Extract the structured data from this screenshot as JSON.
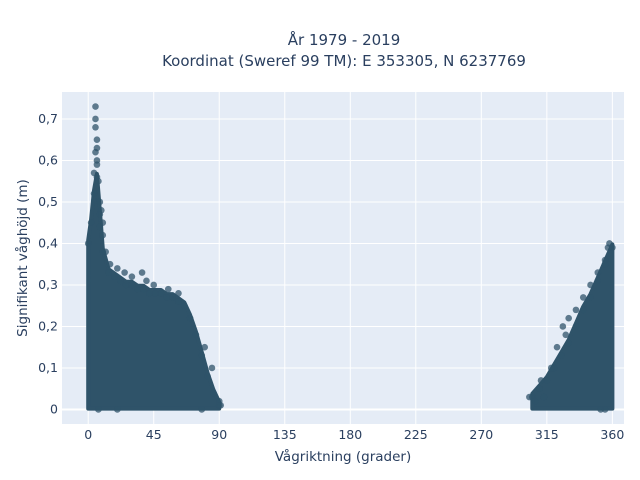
{
  "chart_data": {
    "type": "scatter",
    "title_line1": "År 1979 - 2019",
    "title_line2": "Koordinat (Sweref 99 TM): E 353305, N 6237769",
    "xlabel": "Vågriktning (grader)",
    "ylabel": "Signifikant våghöjd (m)",
    "xlim": [
      -18,
      368
    ],
    "ylim": [
      -0.035,
      0.765
    ],
    "x_ticks": [
      0,
      45,
      90,
      135,
      180,
      225,
      270,
      315,
      360
    ],
    "x_tick_labels": [
      "0",
      "45",
      "90",
      "135",
      "180",
      "225",
      "270",
      "315",
      "360"
    ],
    "y_ticks": [
      0,
      0.1,
      0.2,
      0.3,
      0.4,
      0.5,
      0.6,
      0.7
    ],
    "y_tick_labels": [
      "0",
      "0,1",
      "0,2",
      "0,3",
      "0,4",
      "0,5",
      "0,6",
      "0,7"
    ],
    "grid": true,
    "marker_color": "#2f5369",
    "plot_bg": "#e5ecf6",
    "dense_regions": [
      {
        "x": [
          0,
          2,
          4,
          6,
          8,
          10,
          14,
          18,
          22,
          26,
          30,
          34,
          38,
          42,
          46,
          50,
          54,
          58,
          62,
          66,
          70,
          74,
          78,
          82,
          86,
          90
        ],
        "ymin": 0.01,
        "ymax": [
          0.4,
          0.45,
          0.52,
          0.56,
          0.47,
          0.38,
          0.33,
          0.32,
          0.31,
          0.3,
          0.3,
          0.29,
          0.29,
          0.28,
          0.28,
          0.28,
          0.27,
          0.27,
          0.26,
          0.25,
          0.22,
          0.18,
          0.13,
          0.08,
          0.04,
          0.01
        ]
      },
      {
        "x": [
          305,
          310,
          315,
          320,
          325,
          330,
          335,
          340,
          345,
          350,
          355,
          360
        ],
        "ymin": 0.01,
        "ymax": [
          0.03,
          0.05,
          0.07,
          0.1,
          0.13,
          0.16,
          0.2,
          0.24,
          0.27,
          0.31,
          0.35,
          0.39
        ]
      }
    ],
    "outliers": [
      {
        "x": 5,
        "y": 0.73
      },
      {
        "x": 5,
        "y": 0.7
      },
      {
        "x": 5,
        "y": 0.68
      },
      {
        "x": 6,
        "y": 0.65
      },
      {
        "x": 6,
        "y": 0.63
      },
      {
        "x": 5,
        "y": 0.62
      },
      {
        "x": 6,
        "y": 0.6
      },
      {
        "x": 6,
        "y": 0.59
      },
      {
        "x": 4,
        "y": 0.57
      },
      {
        "x": 7,
        "y": 0.55
      },
      {
        "x": 8,
        "y": 0.5
      },
      {
        "x": 9,
        "y": 0.48
      },
      {
        "x": 10,
        "y": 0.45
      },
      {
        "x": 8,
        "y": 0.44
      },
      {
        "x": 10,
        "y": 0.42
      },
      {
        "x": 12,
        "y": 0.38
      },
      {
        "x": 15,
        "y": 0.35
      },
      {
        "x": 20,
        "y": 0.34
      },
      {
        "x": 25,
        "y": 0.33
      },
      {
        "x": 30,
        "y": 0.32
      },
      {
        "x": 37,
        "y": 0.33
      },
      {
        "x": 40,
        "y": 0.31
      },
      {
        "x": 45,
        "y": 0.3
      },
      {
        "x": 55,
        "y": 0.29
      },
      {
        "x": 62,
        "y": 0.28
      },
      {
        "x": 80,
        "y": 0.15
      },
      {
        "x": 85,
        "y": 0.1
      },
      {
        "x": 90,
        "y": 0.02
      },
      {
        "x": 91,
        "y": 0.01
      },
      {
        "x": 7,
        "y": 0.0
      },
      {
        "x": 20,
        "y": 0.0
      },
      {
        "x": 78,
        "y": 0.0
      },
      {
        "x": 307,
        "y": 0.02
      },
      {
        "x": 303,
        "y": 0.03
      },
      {
        "x": 311,
        "y": 0.07
      },
      {
        "x": 313,
        "y": 0.03
      },
      {
        "x": 318,
        "y": 0.1
      },
      {
        "x": 322,
        "y": 0.15
      },
      {
        "x": 326,
        "y": 0.2
      },
      {
        "x": 328,
        "y": 0.18
      },
      {
        "x": 330,
        "y": 0.22
      },
      {
        "x": 335,
        "y": 0.24
      },
      {
        "x": 340,
        "y": 0.27
      },
      {
        "x": 345,
        "y": 0.3
      },
      {
        "x": 350,
        "y": 0.33
      },
      {
        "x": 355,
        "y": 0.36
      },
      {
        "x": 357,
        "y": 0.39
      },
      {
        "x": 358,
        "y": 0.4
      },
      {
        "x": 352,
        "y": 0.0
      },
      {
        "x": 355,
        "y": 0.0
      }
    ]
  }
}
